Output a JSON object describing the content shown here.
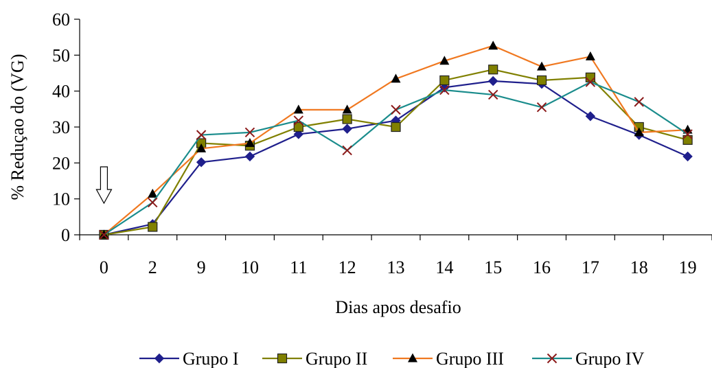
{
  "chart_data": {
    "type": "line",
    "title": "",
    "xlabel": "Dias apos desafio",
    "ylabel": "% Reduçao do (VG)",
    "categories": [
      "0",
      "2",
      "9",
      "10",
      "11",
      "12",
      "13",
      "14",
      "15",
      "16",
      "17",
      "18",
      "19"
    ],
    "ylim": [
      0,
      60
    ],
    "yticks": [
      0,
      10,
      20,
      30,
      40,
      50,
      60
    ],
    "grid": false,
    "legend_position": "bottom",
    "annotation": "down-arrow-at-day-0",
    "series": [
      {
        "name": "Grupo I",
        "color": "#1f1f8c",
        "marker": "diamond",
        "values": [
          0,
          3,
          20.2,
          21.8,
          28,
          29.5,
          31.8,
          41,
          42.8,
          42,
          33,
          27.8,
          21.8
        ]
      },
      {
        "name": "Grupo II",
        "color": "#808000",
        "marker": "square",
        "values": [
          0,
          2.2,
          25.5,
          24.8,
          30,
          32.2,
          30,
          43,
          46,
          43,
          43.8,
          30,
          26.4
        ]
      },
      {
        "name": "Grupo III",
        "color": "#f07820",
        "marker": "triangle",
        "values": [
          0,
          11.4,
          24,
          25.5,
          34.8,
          34.8,
          43.4,
          48.4,
          52.6,
          46.8,
          49.6,
          28.5,
          29.2
        ]
      },
      {
        "name": "Grupo IV",
        "color": "#1a8c8c",
        "marker": "x",
        "values": [
          0,
          9,
          27.8,
          28.5,
          31.8,
          23.5,
          34.8,
          40.3,
          39,
          35.5,
          42.5,
          37,
          28
        ]
      }
    ]
  }
}
